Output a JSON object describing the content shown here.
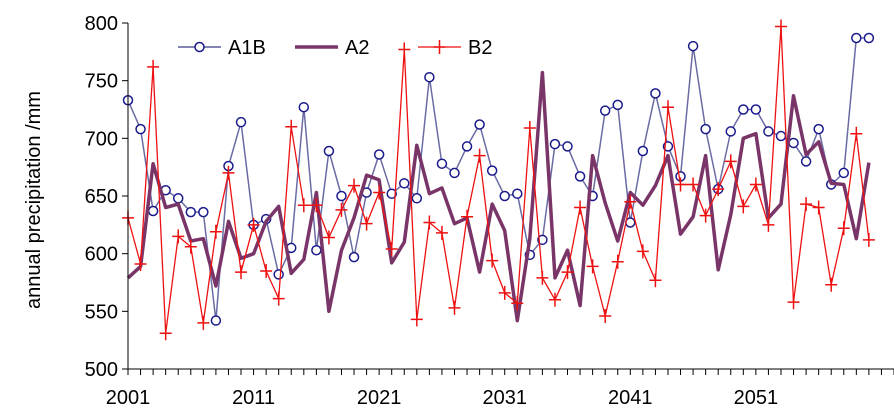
{
  "chart_data": {
    "type": "line",
    "title": "",
    "xlabel": "",
    "ylabel": "annual precipitation /mm",
    "ylim": [
      500,
      800
    ],
    "xlim": [
      2001,
      2062
    ],
    "yticks": [
      500,
      550,
      600,
      650,
      700,
      750,
      800
    ],
    "xticks": [
      2001,
      2011,
      2021,
      2031,
      2041,
      2051
    ],
    "grid": false,
    "legend": "top-left",
    "series": [
      {
        "name": "A1B",
        "color": "#5b5b9a",
        "marker": "circle",
        "values": [
          733,
          708,
          637,
          655,
          648,
          636,
          636,
          542,
          676,
          714,
          625,
          630,
          582,
          605,
          727,
          603,
          689,
          650,
          597,
          653,
          686,
          652,
          661,
          648,
          753,
          678,
          670,
          693,
          712,
          672,
          650,
          652,
          599,
          612,
          695,
          693,
          667,
          650,
          724,
          729,
          627,
          689,
          739,
          693,
          667,
          780,
          708,
          656,
          706,
          725,
          725,
          706,
          702,
          696,
          680,
          708,
          660,
          670,
          787,
          787
        ]
      },
      {
        "name": "A2",
        "color": "#7a3568",
        "marker": "none",
        "values": [
          579,
          589,
          678,
          640,
          643,
          611,
          613,
          572,
          628,
          596,
          600,
          628,
          641,
          583,
          595,
          653,
          550,
          603,
          631,
          668,
          664,
          592,
          610,
          694,
          652,
          657,
          626,
          631,
          584,
          643,
          620,
          542,
          613,
          757,
          579,
          603,
          555,
          685,
          644,
          611,
          653,
          642,
          659,
          685,
          617,
          632,
          685,
          586,
          634,
          700,
          704,
          631,
          643,
          737,
          686,
          697,
          661,
          660,
          613,
          679
        ]
      },
      {
        "name": "B2",
        "color": "#ee1111",
        "marker": "plus",
        "values": [
          631,
          591,
          762,
          531,
          615,
          606,
          540,
          619,
          670,
          584,
          625,
          585,
          561,
          710,
          642,
          642,
          614,
          638,
          659,
          626,
          653,
          604,
          777,
          543,
          627,
          618,
          553,
          632,
          685,
          594,
          566,
          557,
          709,
          579,
          560,
          584,
          640,
          589,
          546,
          593,
          645,
          602,
          577,
          727,
          660,
          660,
          633,
          656,
          680,
          641,
          660,
          625,
          797,
          558,
          643,
          640,
          573,
          622,
          704,
          612
        ]
      }
    ]
  }
}
